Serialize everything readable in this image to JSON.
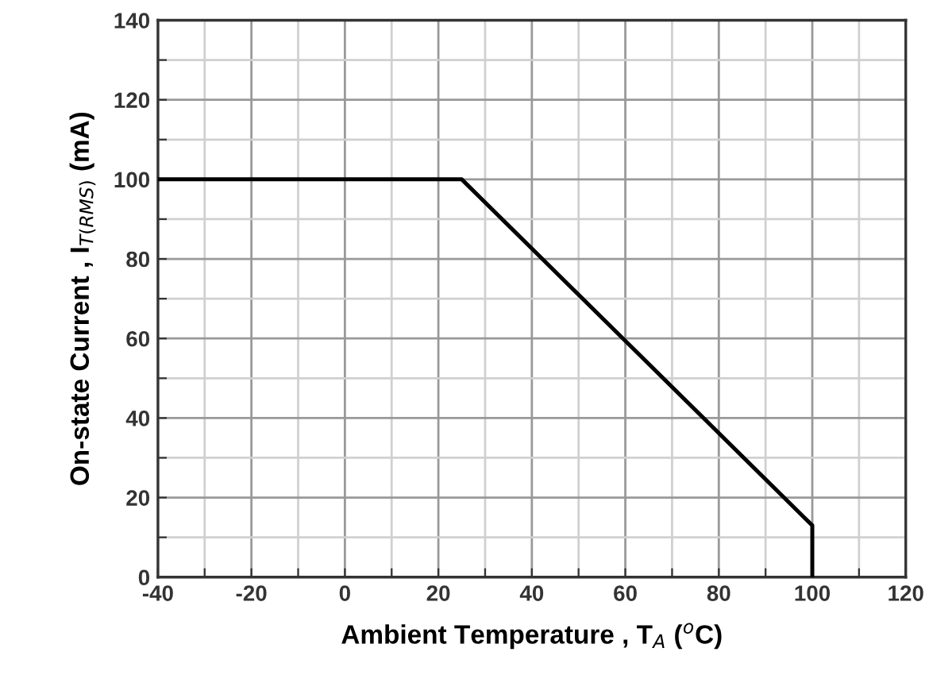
{
  "chart_data": {
    "type": "line",
    "xlabel": "Ambient Temperature , T$_{A}$ ($^{o}$C)",
    "ylabel": "On-state Current , I$_{T(RMS)}$ (mA)",
    "x": [
      -40,
      25,
      100,
      100
    ],
    "series": [
      {
        "color": "#000000",
        "values": [
          100,
          100,
          13,
          0
        ]
      }
    ],
    "xlim": [
      -40,
      120
    ],
    "ylim": [
      0,
      140
    ],
    "xticks": [
      -40,
      {
        "value": -30,
        "label": null
      },
      -20,
      {
        "value": -10,
        "label": null
      },
      0,
      {
        "value": 10,
        "label": null
      },
      20,
      {
        "value": 30,
        "label": null
      },
      40,
      {
        "value": 50,
        "label": null
      },
      60,
      {
        "value": 70,
        "label": null
      },
      80,
      {
        "value": 90,
        "label": null
      },
      100,
      {
        "value": 110,
        "label": null
      },
      120
    ],
    "yticks": [
      0,
      {
        "value": 10,
        "label": null
      },
      20,
      {
        "value": 30,
        "label": null
      },
      40,
      {
        "value": 50,
        "label": null
      },
      60,
      {
        "value": 70,
        "label": null
      },
      80,
      {
        "value": 90,
        "label": null
      },
      100,
      {
        "value": 110,
        "label": null
      },
      120,
      {
        "value": 130,
        "label": null
      },
      140
    ],
    "grid": true,
    "marker": "none",
    "line_style": "solid"
  }
}
